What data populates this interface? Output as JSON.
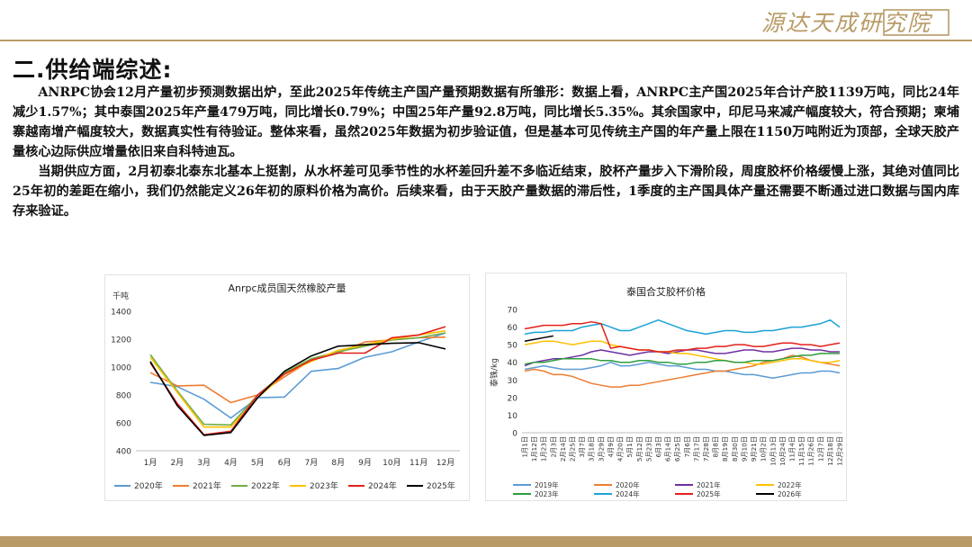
{
  "header": {
    "logo_text": "源达天成研究院",
    "logo_color": "#b89b66"
  },
  "section": {
    "title": "二.供给端综述:",
    "paragraphs": [
      "ANRPC协会12月产量初步预测数据出炉，至此2025年传统主产国产量预期数据有所雏形：数据上看，ANRPC主产国2025年合计产胶1139万吨，同比24年减少1.57%；其中泰国2025年产量479万吨，同比增长0.79%；中国25年产量92.8万吨，同比增长5.35%。其余国家中，印尼马来减产幅度较大，符合预期；柬埔寨越南增产幅度较大，数据真实性有待验证。整体来看，虽然2025年数据为初步验证值，但是基本可见传统主产国的年产量上限在1150万吨附近为顶部，全球天胶产量核心边际供应增量依旧来自科特迪瓦。",
      "当期供应方面，2月初泰北泰东北基本上挺割，从水杯差可见季节性的水杯差回升差不多临近结束，胶杯产量步入下滑阶段，周度胶杯价格缓慢上涨，其绝对值同比25年初的差距在缩小，我们仍然能定义26年初的原料价格为高价。后续来看，由于天胶产量数据的滞后性，1季度的主产国具体产量还需要不断通过进口数据与国内库存来验证。"
    ]
  },
  "chart_data": [
    {
      "type": "line",
      "title": "Anrpc成员国天然橡胶产量",
      "ylabel": "千吨",
      "ylim": [
        400,
        1400
      ],
      "yticks": [
        "400",
        "600",
        "800",
        "1000",
        "1200",
        "1400"
      ],
      "categories": [
        "1月",
        "2月",
        "3月",
        "4月",
        "5月",
        "6月",
        "7月",
        "8月",
        "9月",
        "10月",
        "11月",
        "12月"
      ],
      "grid": false,
      "legend_position": "bottom",
      "series": [
        {
          "name": "2020年",
          "color": "#5b9bd5",
          "values": [
            890,
            860,
            770,
            635,
            780,
            785,
            970,
            990,
            1070,
            1110,
            1180,
            1245
          ]
        },
        {
          "name": "2021年",
          "color": "#ed7d31",
          "values": [
            960,
            865,
            870,
            745,
            800,
            930,
            1050,
            1100,
            1180,
            1195,
            1210,
            1215
          ]
        },
        {
          "name": "2022年",
          "color": "#70ad47",
          "values": [
            1090,
            830,
            590,
            585,
            800,
            960,
            1060,
            1110,
            1150,
            1195,
            1210,
            1245
          ]
        },
        {
          "name": "2023年",
          "color": "#ffc000",
          "values": [
            1070,
            820,
            570,
            570,
            780,
            950,
            1040,
            1120,
            1160,
            1200,
            1230,
            1260
          ]
        },
        {
          "name": "2024年",
          "color": "#e3201b",
          "values": [
            1030,
            740,
            515,
            540,
            800,
            950,
            1050,
            1100,
            1100,
            1210,
            1230,
            1290
          ]
        },
        {
          "name": "2025年",
          "color": "#000000",
          "values": [
            1040,
            725,
            510,
            530,
            780,
            970,
            1080,
            1150,
            1160,
            1170,
            1175,
            1130
          ]
        }
      ]
    },
    {
      "type": "line",
      "title": "泰国合艾胶杯价格",
      "ylabel": "泰铢/kg",
      "ylim": [
        0,
        70
      ],
      "yticks": [
        "0",
        "10",
        "20",
        "30",
        "40",
        "50",
        "60",
        "70"
      ],
      "categories": [
        "1月1日",
        "1月12日",
        "1月23日",
        "2月3日",
        "2月14日",
        "2月25日",
        "3月7日",
        "3月18日",
        "3月29日",
        "4月9日",
        "4月20日",
        "5月1日",
        "5月12日",
        "5月23日",
        "6月3日",
        "6月14日",
        "6月25日",
        "7月6日",
        "7月17日",
        "7月28日",
        "8月8日",
        "8月19日",
        "8月30日",
        "9月10日",
        "9月21日",
        "10月2日",
        "10月13日",
        "10月24日",
        "11月4日",
        "11月15日",
        "11月26日",
        "12月7日",
        "12月18日",
        "12月29日"
      ],
      "grid": false,
      "legend_position": "bottom",
      "series": [
        {
          "name": "2019年",
          "color": "#5b9bd5",
          "values": [
            36,
            37,
            38,
            37,
            36,
            36,
            36,
            37,
            38,
            40,
            38,
            38,
            39,
            40,
            39,
            38,
            38,
            37,
            36,
            36,
            35,
            35,
            34,
            33,
            33,
            32,
            31,
            32,
            33,
            34,
            34,
            35,
            35,
            34
          ]
        },
        {
          "name": "2020年",
          "color": "#ed7d31",
          "values": [
            35,
            36,
            35,
            33,
            33,
            32,
            30,
            28,
            27,
            26,
            26,
            27,
            27,
            28,
            29,
            30,
            31,
            32,
            33,
            34,
            35,
            35,
            36,
            37,
            38,
            40,
            41,
            42,
            44,
            43,
            41,
            40,
            39,
            38
          ]
        },
        {
          "name": "2021年",
          "color": "#7030a0",
          "values": [
            38,
            40,
            41,
            42,
            42,
            43,
            44,
            46,
            47,
            46,
            45,
            44,
            45,
            46,
            46,
            45,
            46,
            47,
            47,
            46,
            45,
            45,
            46,
            47,
            47,
            46,
            46,
            47,
            48,
            48,
            47,
            47,
            46,
            46
          ]
        },
        {
          "name": "2022年",
          "color": "#ffc000",
          "values": [
            50,
            51,
            52,
            52,
            51,
            50,
            51,
            52,
            52,
            50,
            49,
            48,
            47,
            47,
            46,
            46,
            45,
            45,
            44,
            43,
            42,
            41,
            40,
            40,
            39,
            39,
            40,
            41,
            42,
            42,
            41,
            40,
            40,
            41
          ]
        },
        {
          "name": "2023年",
          "color": "#2e9e3e",
          "values": [
            39,
            40,
            40,
            41,
            42,
            42,
            42,
            42,
            41,
            41,
            40,
            40,
            41,
            41,
            40,
            40,
            39,
            39,
            40,
            40,
            41,
            41,
            40,
            40,
            41,
            41,
            41,
            42,
            43,
            44,
            44,
            45,
            45,
            45
          ]
        },
        {
          "name": "2024年",
          "color": "#1aa3d6",
          "values": [
            56,
            57,
            57,
            58,
            58,
            58,
            60,
            61,
            62,
            60,
            58,
            58,
            60,
            62,
            64,
            62,
            60,
            58,
            57,
            56,
            57,
            58,
            58,
            57,
            57,
            58,
            58,
            59,
            60,
            60,
            61,
            62,
            64,
            60
          ]
        },
        {
          "name": "2025年",
          "color": "#e3201b",
          "values": [
            59,
            60,
            61,
            61,
            61,
            62,
            62,
            63,
            62,
            48,
            49,
            48,
            47,
            47,
            46,
            46,
            47,
            47,
            48,
            48,
            49,
            49,
            50,
            50,
            49,
            49,
            50,
            51,
            51,
            50,
            50,
            49,
            50,
            51
          ]
        },
        {
          "name": "2026年",
          "color": "#000000",
          "values": [
            52,
            53,
            54,
            55,
            null,
            null,
            null,
            null,
            null,
            null,
            null,
            null,
            null,
            null,
            null,
            null,
            null,
            null,
            null,
            null,
            null,
            null,
            null,
            null,
            null,
            null,
            null,
            null,
            null,
            null,
            null,
            null,
            null,
            null
          ]
        }
      ]
    }
  ]
}
